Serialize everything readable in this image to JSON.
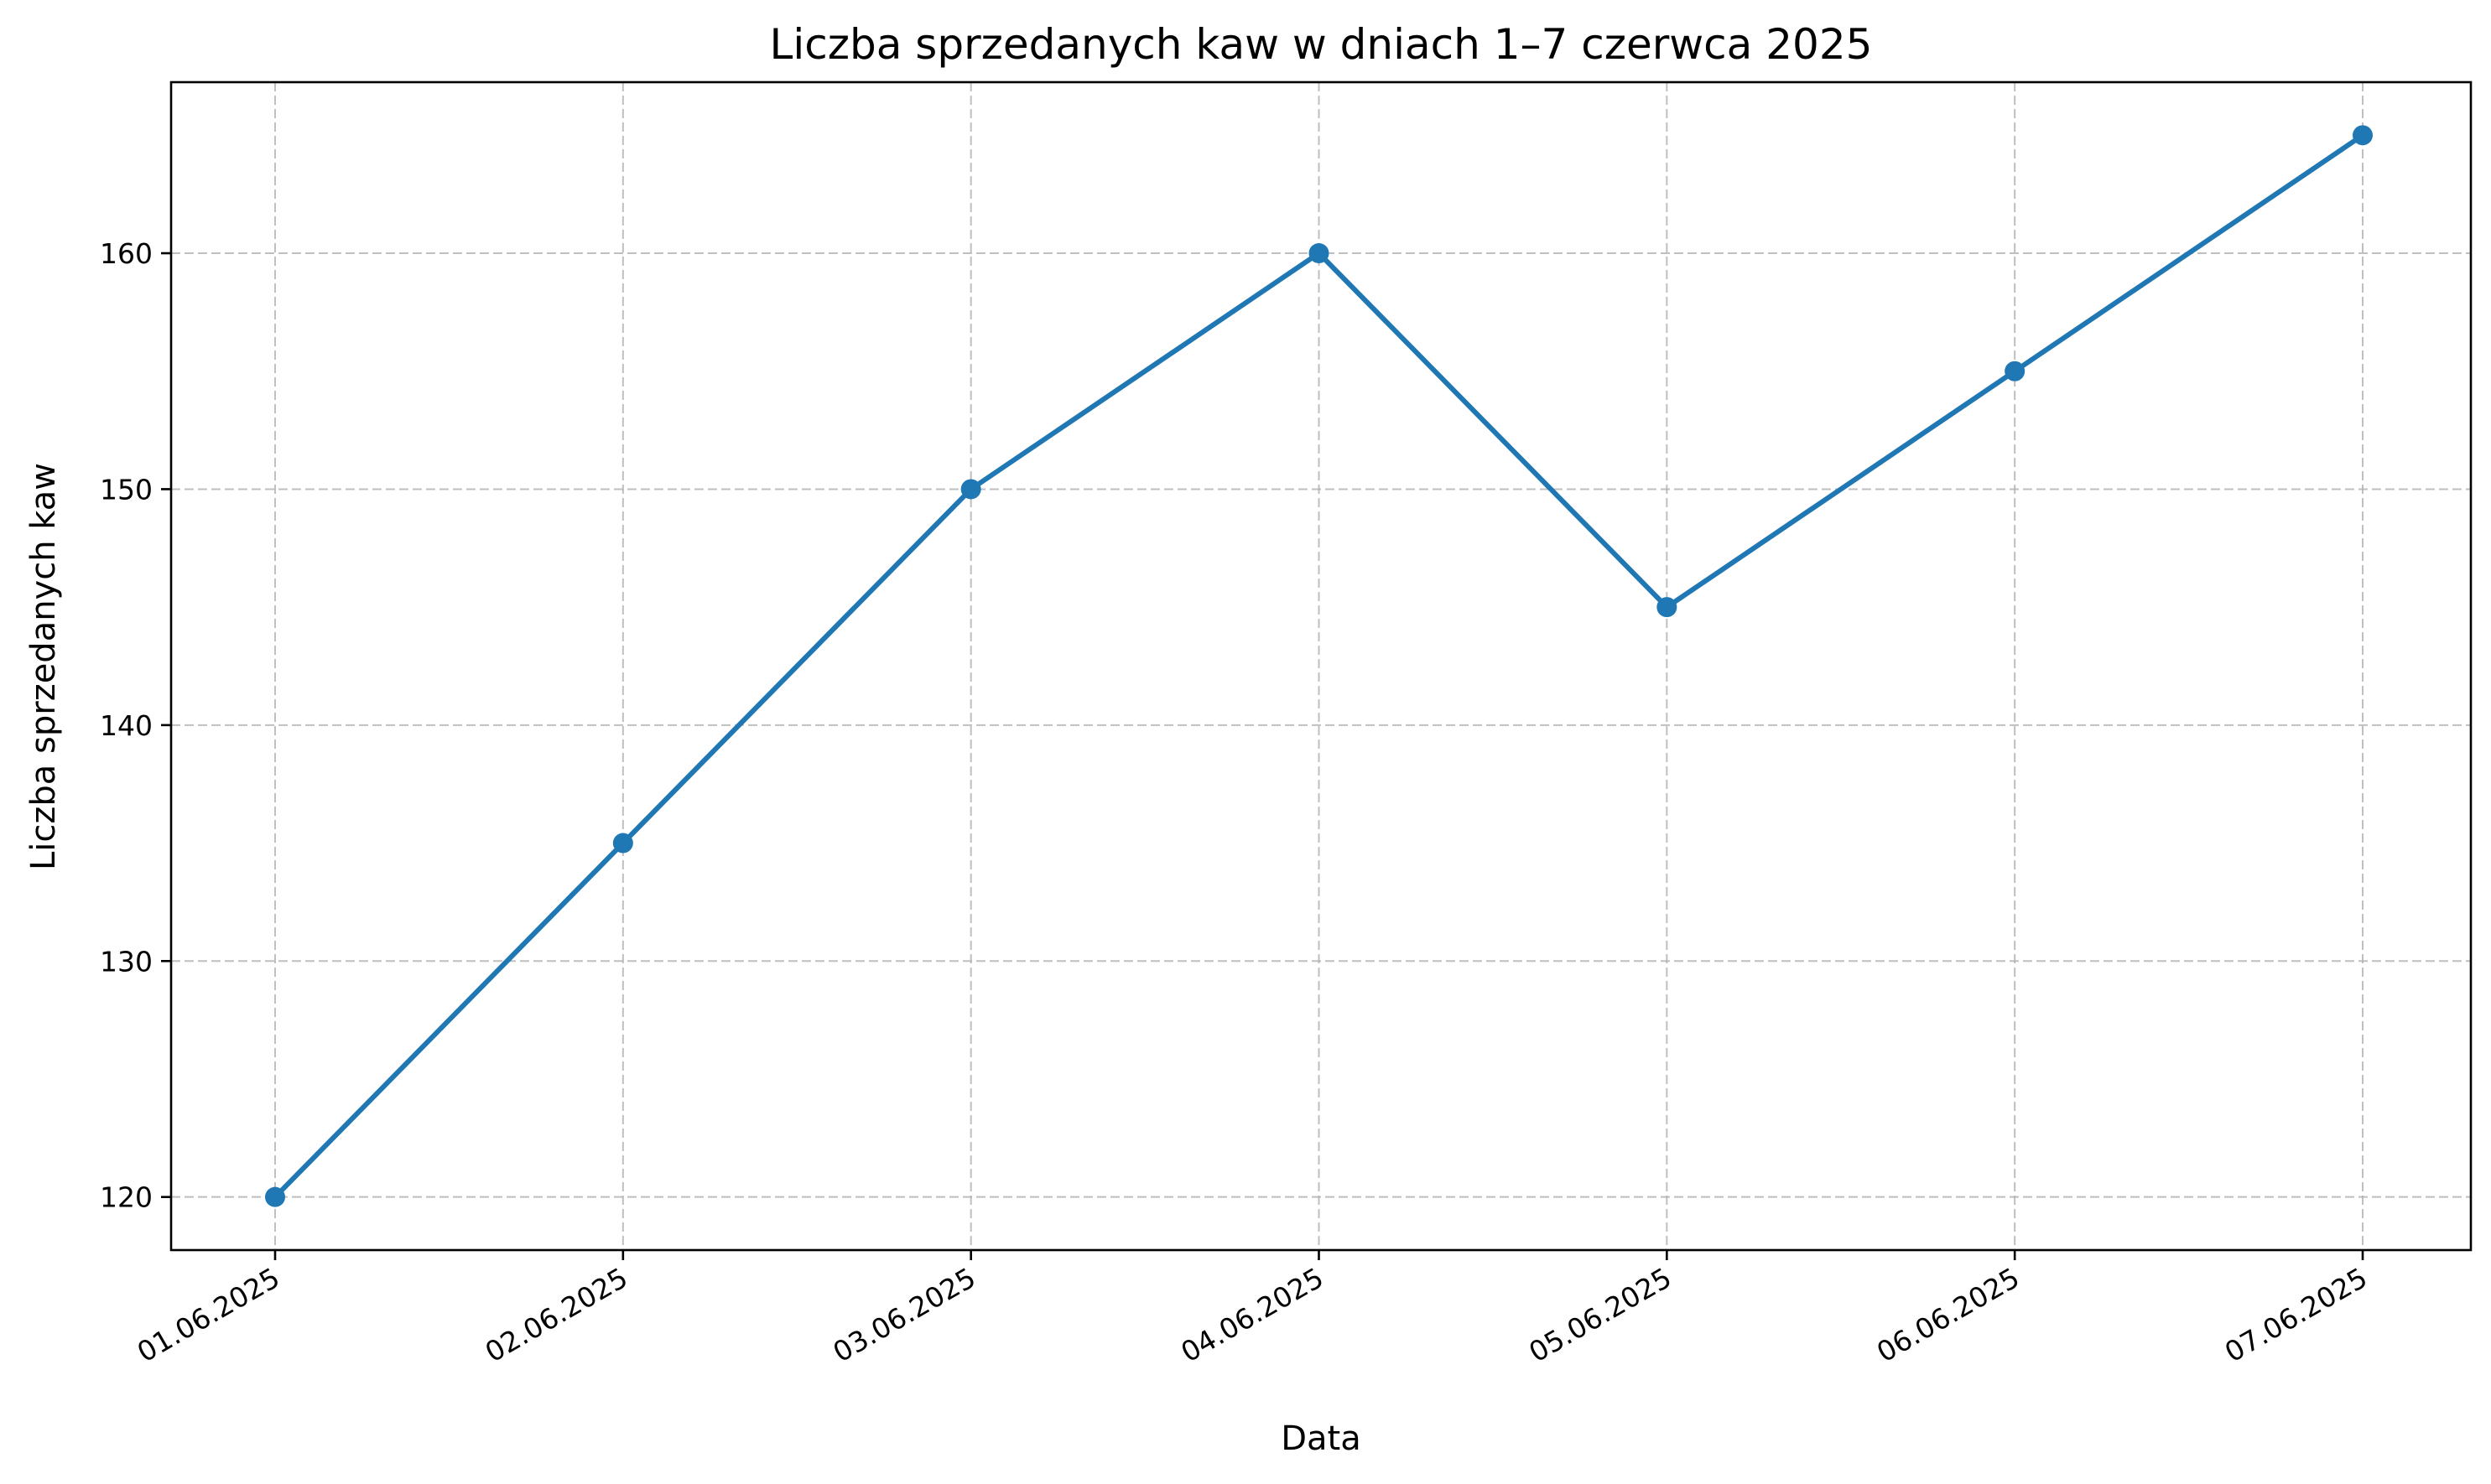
{
  "chart_data": {
    "type": "line",
    "title": "Liczba sprzedanych kaw w dniach 1–7 czerwca 2025",
    "xlabel": "Data",
    "ylabel": "Liczba sprzedanych kaw",
    "categories": [
      "01.06.2025",
      "02.06.2025",
      "03.06.2025",
      "04.06.2025",
      "05.06.2025",
      "06.06.2025",
      "07.06.2025"
    ],
    "series": [
      {
        "values": [
          120,
          135,
          150,
          160,
          145,
          155,
          165
        ],
        "color": "#1f77b4"
      }
    ],
    "yticks": [
      120,
      130,
      140,
      150,
      160
    ],
    "ylim": [
      117.75,
      167.25
    ],
    "grid": true,
    "markers": "circle",
    "legend": "none"
  }
}
